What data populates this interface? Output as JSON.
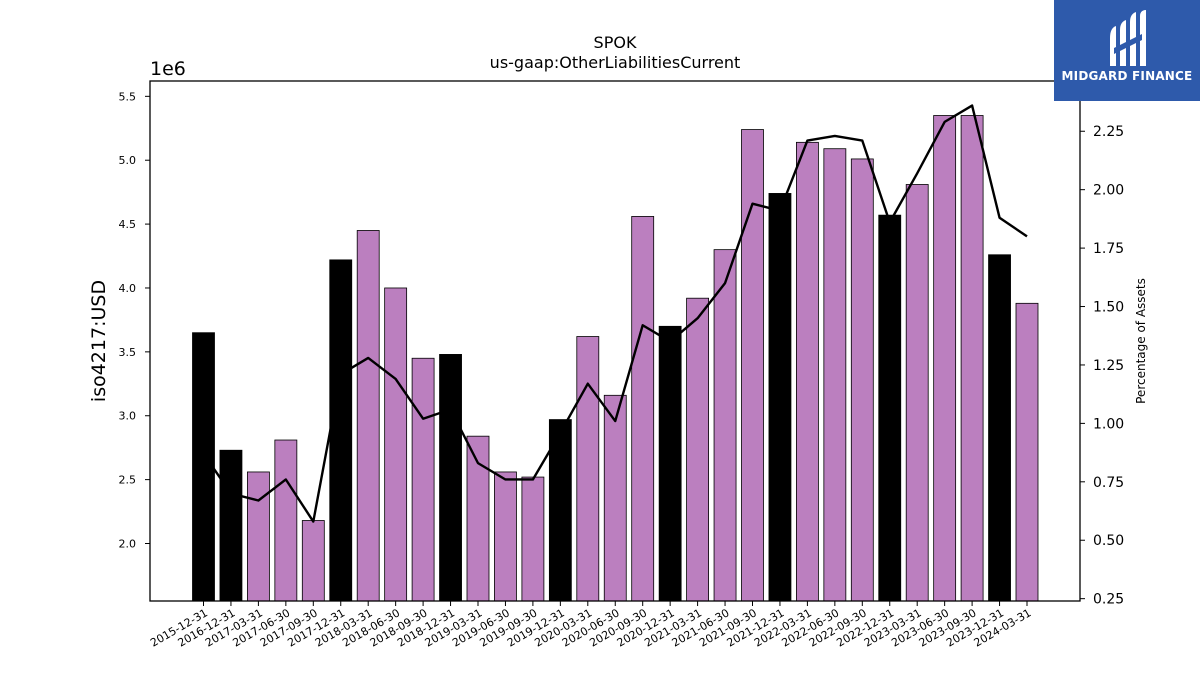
{
  "chart_data": {
    "type": "bar",
    "title": "SPOK",
    "subtitle": "us-gaap:OtherLiabilitiesCurrent",
    "ylabel": "iso4217:USD",
    "y_offset_label": "1e6",
    "y2label": "Percentage of Assets",
    "ylim": [
      1550000,
      5620000
    ],
    "y2lim": [
      0.24,
      2.465
    ],
    "yticks": [
      "2.0",
      "2.5",
      "3.0",
      "3.5",
      "4.0",
      "4.5",
      "5.0",
      "5.5"
    ],
    "y2ticks": [
      "0.25",
      "0.50",
      "0.75",
      "1.00",
      "1.25",
      "1.50",
      "1.75",
      "2.00",
      "2.25"
    ],
    "categories": [
      "2015-12-31",
      "2016-12-31",
      "2017-03-31",
      "2017-06-30",
      "2017-09-30",
      "2017-12-31",
      "2018-03-31",
      "2018-06-30",
      "2018-09-30",
      "2018-12-31",
      "2019-03-31",
      "2019-06-30",
      "2019-09-30",
      "2019-12-31",
      "2020-03-31",
      "2020-06-30",
      "2020-09-30",
      "2020-12-31",
      "2021-03-31",
      "2021-06-30",
      "2021-09-30",
      "2021-12-31",
      "2022-03-31",
      "2022-06-30",
      "2022-09-30",
      "2022-12-31",
      "2023-03-31",
      "2023-06-30",
      "2023-09-30",
      "2023-12-31",
      "2024-03-31"
    ],
    "values": [
      3650000,
      2730000,
      2560000,
      2810000,
      2180000,
      4220000,
      4450000,
      4000000,
      3450000,
      3480000,
      2840000,
      2560000,
      2520000,
      2970000,
      3620000,
      3160000,
      4560000,
      3700000,
      3920000,
      4300000,
      5240000,
      4740000,
      5140000,
      5090000,
      5010000,
      4570000,
      4810000,
      5350000,
      5350000,
      4260000,
      3880000
    ],
    "bar_kind": [
      "annual",
      "annual",
      "quarter",
      "quarter",
      "quarter",
      "annual",
      "quarter",
      "quarter",
      "quarter",
      "annual",
      "quarter",
      "quarter",
      "quarter",
      "annual",
      "quarter",
      "quarter",
      "quarter",
      "annual",
      "quarter",
      "quarter",
      "quarter",
      "annual",
      "quarter",
      "quarter",
      "quarter",
      "annual",
      "quarter",
      "quarter",
      "quarter",
      "annual",
      "quarter"
    ],
    "line_values": [
      0.87,
      0.7,
      0.67,
      0.76,
      0.58,
      1.21,
      1.28,
      1.19,
      1.02,
      1.06,
      0.83,
      0.76,
      0.76,
      0.96,
      1.17,
      1.01,
      1.42,
      1.35,
      1.45,
      1.6,
      1.94,
      1.91,
      2.21,
      2.23,
      2.21,
      1.86,
      2.07,
      2.29,
      2.36,
      1.88,
      1.8
    ],
    "colors": {
      "annual": "#000000",
      "quarter": "#bb7fbf",
      "line": "#000000"
    },
    "grid": false
  },
  "logo": {
    "text": "MIDGARD FINANCE"
  }
}
